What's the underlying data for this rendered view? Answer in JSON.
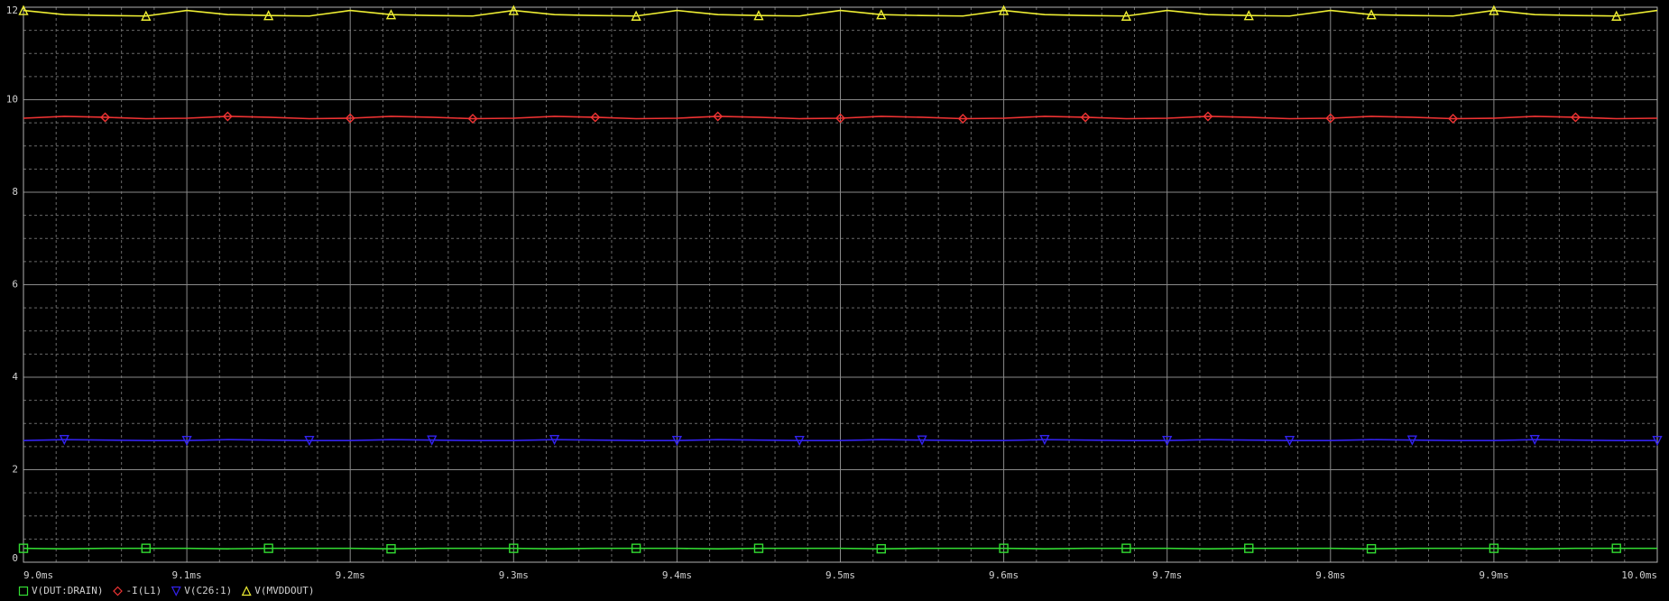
{
  "chart_data": {
    "type": "line",
    "x": [
      9.0,
      9.025,
      9.05,
      9.075,
      9.1,
      9.125,
      9.15,
      9.175,
      9.2,
      9.225,
      9.25,
      9.275,
      9.3,
      9.325,
      9.35,
      9.375,
      9.4,
      9.425,
      9.45,
      9.475,
      9.5,
      9.525,
      9.55,
      9.575,
      9.6,
      9.625,
      9.65,
      9.675,
      9.7,
      9.725,
      9.75,
      9.775,
      9.8,
      9.825,
      9.85,
      9.875,
      9.9,
      9.925,
      9.95,
      9.975,
      10.0
    ],
    "series": [
      {
        "name": "V(DUT:DRAIN)",
        "color": "#33dd33",
        "marker": "square",
        "values": [
          0.3,
          0.29,
          0.3,
          0.3,
          0.3,
          0.29,
          0.3,
          0.3,
          0.3,
          0.29,
          0.3,
          0.3,
          0.3,
          0.29,
          0.3,
          0.3,
          0.3,
          0.29,
          0.3,
          0.3,
          0.3,
          0.29,
          0.3,
          0.3,
          0.3,
          0.29,
          0.3,
          0.3,
          0.3,
          0.29,
          0.3,
          0.3,
          0.3,
          0.29,
          0.3,
          0.3,
          0.3,
          0.29,
          0.3,
          0.3,
          0.3
        ]
      },
      {
        "name": "-I(L1)",
        "color": "#ee3333",
        "marker": "diamond",
        "values": [
          9.6,
          9.64,
          9.62,
          9.59,
          9.6,
          9.64,
          9.62,
          9.59,
          9.6,
          9.64,
          9.62,
          9.59,
          9.6,
          9.64,
          9.62,
          9.59,
          9.6,
          9.64,
          9.62,
          9.59,
          9.6,
          9.64,
          9.62,
          9.59,
          9.6,
          9.64,
          9.62,
          9.59,
          9.6,
          9.64,
          9.62,
          9.59,
          9.6,
          9.64,
          9.62,
          9.59,
          9.6,
          9.64,
          9.62,
          9.59,
          9.6
        ]
      },
      {
        "name": "V(C26:1)",
        "color": "#3322ee",
        "marker": "triangle-down",
        "values": [
          2.63,
          2.65,
          2.64,
          2.63,
          2.63,
          2.65,
          2.64,
          2.63,
          2.63,
          2.65,
          2.64,
          2.63,
          2.63,
          2.65,
          2.64,
          2.63,
          2.63,
          2.65,
          2.64,
          2.63,
          2.63,
          2.65,
          2.64,
          2.63,
          2.63,
          2.65,
          2.64,
          2.63,
          2.63,
          2.65,
          2.64,
          2.63,
          2.63,
          2.65,
          2.64,
          2.63,
          2.63,
          2.65,
          2.64,
          2.63,
          2.63
        ]
      },
      {
        "name": "V(MVDDOUT)",
        "color": "#eeee33",
        "marker": "triangle-up",
        "values": [
          11.93,
          11.84,
          11.82,
          11.81,
          11.93,
          11.84,
          11.82,
          11.81,
          11.93,
          11.84,
          11.82,
          11.81,
          11.93,
          11.84,
          11.82,
          11.81,
          11.93,
          11.84,
          11.82,
          11.81,
          11.93,
          11.84,
          11.82,
          11.81,
          11.93,
          11.84,
          11.82,
          11.81,
          11.93,
          11.84,
          11.82,
          11.81,
          11.93,
          11.84,
          11.82,
          11.81,
          11.93,
          11.84,
          11.82,
          11.81,
          11.93
        ]
      }
    ],
    "xlim": [
      9.0,
      10.0
    ],
    "xticks": [
      {
        "value": 9.0,
        "label": "9.0ms"
      },
      {
        "value": 9.1,
        "label": "9.1ms"
      },
      {
        "value": 9.2,
        "label": "9.2ms"
      },
      {
        "value": 9.3,
        "label": "9.3ms"
      },
      {
        "value": 9.4,
        "label": "9.4ms"
      },
      {
        "value": 9.5,
        "label": "9.5ms"
      },
      {
        "value": 9.6,
        "label": "9.6ms"
      },
      {
        "value": 9.7,
        "label": "9.7ms"
      },
      {
        "value": 9.8,
        "label": "9.8ms"
      },
      {
        "value": 9.9,
        "label": "9.9ms"
      },
      {
        "value": 10.0,
        "label": "10.0ms"
      }
    ],
    "ylim": [
      0,
      12
    ],
    "yticks": [
      0,
      2,
      4,
      6,
      8,
      10,
      12
    ],
    "grid": true,
    "minor_grid": true,
    "legend": "bottom-left"
  }
}
